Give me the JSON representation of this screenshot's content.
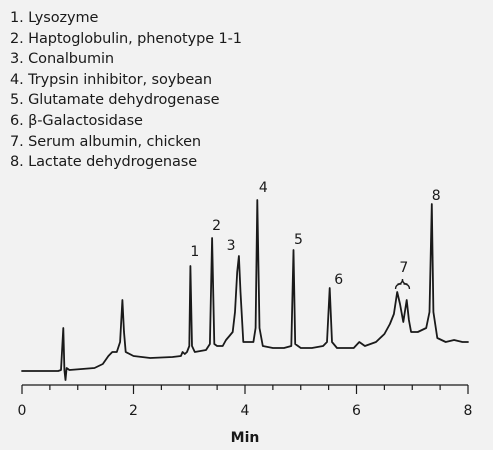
{
  "legend": [
    "1. Lysozyme",
    "2. Haptoglobulin, phenotype 1-1",
    "3. Conalbumin",
    "4. Trypsin inhibitor, soybean",
    "5. Glutamate dehydrogenase",
    "6. β-Galactosidase",
    "7. Serum albumin, chicken",
    "8. Lactate dehydrogenase"
  ],
  "chart_data": {
    "type": "line",
    "xlabel": "Min",
    "ylabel": "",
    "xlim": [
      0,
      8
    ],
    "ylim": [
      0,
      1
    ],
    "xticks": [
      0,
      2,
      4,
      6,
      8
    ],
    "grid": false,
    "series": [
      {
        "points": [
          [
            0.0,
            0.005
          ],
          [
            0.65,
            0.005
          ],
          [
            0.7,
            0.01
          ],
          [
            0.74,
            0.22
          ],
          [
            0.76,
            0.01
          ],
          [
            0.78,
            -0.04
          ],
          [
            0.8,
            0.02
          ],
          [
            0.85,
            0.01
          ],
          [
            1.3,
            0.02
          ],
          [
            1.45,
            0.04
          ],
          [
            1.55,
            0.08
          ],
          [
            1.62,
            0.1
          ],
          [
            1.7,
            0.1
          ],
          [
            1.76,
            0.15
          ],
          [
            1.8,
            0.36
          ],
          [
            1.83,
            0.2
          ],
          [
            1.86,
            0.1
          ],
          [
            2.0,
            0.08
          ],
          [
            2.3,
            0.07
          ],
          [
            2.7,
            0.075
          ],
          [
            2.85,
            0.08
          ],
          [
            2.88,
            0.1
          ],
          [
            2.92,
            0.09
          ],
          [
            2.96,
            0.1
          ],
          [
            3.0,
            0.13
          ],
          [
            3.02,
            0.53
          ],
          [
            3.05,
            0.13
          ],
          [
            3.1,
            0.1
          ],
          [
            3.3,
            0.11
          ],
          [
            3.37,
            0.14
          ],
          [
            3.41,
            0.67
          ],
          [
            3.45,
            0.14
          ],
          [
            3.5,
            0.13
          ],
          [
            3.6,
            0.13
          ],
          [
            3.66,
            0.16
          ],
          [
            3.72,
            0.18
          ],
          [
            3.78,
            0.2
          ],
          [
            3.82,
            0.3
          ],
          [
            3.86,
            0.5
          ],
          [
            3.89,
            0.58
          ],
          [
            3.92,
            0.4
          ],
          [
            3.97,
            0.15
          ],
          [
            4.05,
            0.15
          ],
          [
            4.15,
            0.15
          ],
          [
            4.19,
            0.22
          ],
          [
            4.22,
            0.86
          ],
          [
            4.26,
            0.22
          ],
          [
            4.32,
            0.13
          ],
          [
            4.5,
            0.12
          ],
          [
            4.7,
            0.12
          ],
          [
            4.83,
            0.13
          ],
          [
            4.87,
            0.61
          ],
          [
            4.9,
            0.14
          ],
          [
            5.0,
            0.12
          ],
          [
            5.2,
            0.12
          ],
          [
            5.4,
            0.13
          ],
          [
            5.47,
            0.15
          ],
          [
            5.52,
            0.42
          ],
          [
            5.56,
            0.15
          ],
          [
            5.65,
            0.12
          ],
          [
            5.95,
            0.12
          ],
          [
            6.05,
            0.15
          ],
          [
            6.15,
            0.13
          ],
          [
            6.35,
            0.15
          ],
          [
            6.5,
            0.19
          ],
          [
            6.6,
            0.24
          ],
          [
            6.67,
            0.29
          ],
          [
            6.73,
            0.4
          ],
          [
            6.78,
            0.34
          ],
          [
            6.84,
            0.25
          ],
          [
            6.9,
            0.36
          ],
          [
            6.94,
            0.26
          ],
          [
            6.98,
            0.2
          ],
          [
            7.1,
            0.2
          ],
          [
            7.25,
            0.22
          ],
          [
            7.31,
            0.3
          ],
          [
            7.35,
            0.84
          ],
          [
            7.38,
            0.3
          ],
          [
            7.45,
            0.17
          ],
          [
            7.6,
            0.15
          ],
          [
            7.75,
            0.16
          ],
          [
            7.9,
            0.15
          ],
          [
            8.0,
            0.15
          ]
        ]
      }
    ],
    "peak_labels": [
      {
        "text": "1",
        "x": 3.1,
        "y": 0.58
      },
      {
        "text": "2",
        "x": 3.49,
        "y": 0.71
      },
      {
        "text": "3",
        "x": 3.75,
        "y": 0.61
      },
      {
        "text": "4",
        "x": 4.33,
        "y": 0.9
      },
      {
        "text": "5",
        "x": 4.96,
        "y": 0.64
      },
      {
        "text": "6",
        "x": 5.68,
        "y": 0.44
      },
      {
        "text": "7",
        "x": 6.85,
        "y": 0.5
      },
      {
        "text": "8",
        "x": 7.43,
        "y": 0.86
      }
    ],
    "bracket": {
      "x1": 6.7,
      "x2": 6.95,
      "y": 0.44
    }
  }
}
